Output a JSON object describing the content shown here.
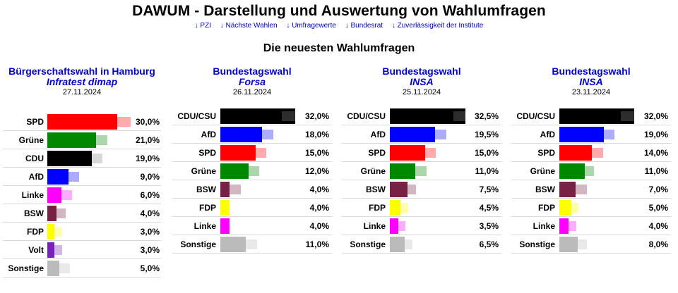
{
  "site_title": "DAWUM - Darstellung und Auswertung von Wahlumfragen",
  "nav": [
    "↓ PZI",
    "↓ Nächste Wahlen",
    "↓ Umfragewerte",
    "↓ Bundesrat",
    "↓ Zuverlässigkeit der Institute"
  ],
  "section_title": "Die neuesten Wahlumfragen",
  "colors": {
    "SPD": "#ff0000",
    "Grüne": "#008800",
    "CDU": "#000000",
    "CDU/CSU": "#000000",
    "AfD": "#0000ff",
    "Linke": "#ff00ff",
    "BSW": "#772244",
    "FDP": "#ffff00",
    "Volt": "#7722bb",
    "Sonstige": "#bbbbbb"
  },
  "chart_data": [
    {
      "type": "bar",
      "orientation": "horizontal",
      "election": "Bürgerschaftswahl in Hamburg",
      "institute": "Infratest dimap",
      "date": "27.11.2024",
      "categories": [
        "SPD",
        "Grüne",
        "CDU",
        "AfD",
        "Linke",
        "BSW",
        "FDP",
        "Volt",
        "Sonstige"
      ],
      "values": [
        30.0,
        21.0,
        19.0,
        9.0,
        6.0,
        4.0,
        3.0,
        3.0,
        5.0
      ],
      "labels": [
        "30,0%",
        "21,0%",
        "19,0%",
        "9,0%",
        "6,0%",
        "4,0%",
        "3,0%",
        "3,0%",
        "5,0%"
      ],
      "previous": [
        33.0,
        23.0,
        21.0,
        11.0,
        8.0,
        5.0,
        3.5,
        3.5,
        7.0
      ]
    },
    {
      "type": "bar",
      "orientation": "horizontal",
      "election": "Bundestagswahl",
      "institute": "Forsa",
      "date": "26.11.2024",
      "categories": [
        "CDU/CSU",
        "AfD",
        "SPD",
        "Grüne",
        "BSW",
        "FDP",
        "Linke",
        "Sonstige"
      ],
      "values": [
        32.0,
        18.0,
        15.0,
        12.0,
        4.0,
        4.0,
        4.0,
        11.0
      ],
      "labels": [
        "32,0%",
        "18,0%",
        "15,0%",
        "12,0%",
        "4,0%",
        "4,0%",
        "4,0%",
        "11,0%"
      ],
      "previous": [
        29.0,
        20.0,
        17.0,
        14.0,
        6.0,
        3.5,
        3.5,
        13.0
      ]
    },
    {
      "type": "bar",
      "orientation": "horizontal",
      "election": "Bundestagswahl",
      "institute": "INSA",
      "date": "25.11.2024",
      "categories": [
        "CDU/CSU",
        "AfD",
        "SPD",
        "Grüne",
        "BSW",
        "FDP",
        "Linke",
        "Sonstige"
      ],
      "values": [
        32.5,
        19.5,
        15.0,
        11.0,
        7.5,
        4.5,
        3.5,
        6.5
      ],
      "labels": [
        "32,5%",
        "19,5%",
        "15,0%",
        "11,0%",
        "7,5%",
        "4,5%",
        "3,5%",
        "6,5%"
      ],
      "previous": [
        30.0,
        21.5,
        17.0,
        13.0,
        8.5,
        5.0,
        4.0,
        7.0
      ]
    },
    {
      "type": "bar",
      "orientation": "horizontal",
      "election": "Bundestagswahl",
      "institute": "INSA",
      "date": "23.11.2024",
      "categories": [
        "CDU/CSU",
        "AfD",
        "SPD",
        "Grüne",
        "BSW",
        "FDP",
        "Linke",
        "Sonstige"
      ],
      "values": [
        32.0,
        19.0,
        14.0,
        11.0,
        7.0,
        5.0,
        4.0,
        8.0
      ],
      "labels": [
        "32,0%",
        "19,0%",
        "14,0%",
        "11,0%",
        "7,0%",
        "5,0%",
        "4,0%",
        "8,0%"
      ],
      "previous": [
        29.0,
        21.0,
        16.0,
        12.0,
        9.0,
        5.5,
        4.5,
        9.0
      ]
    }
  ]
}
